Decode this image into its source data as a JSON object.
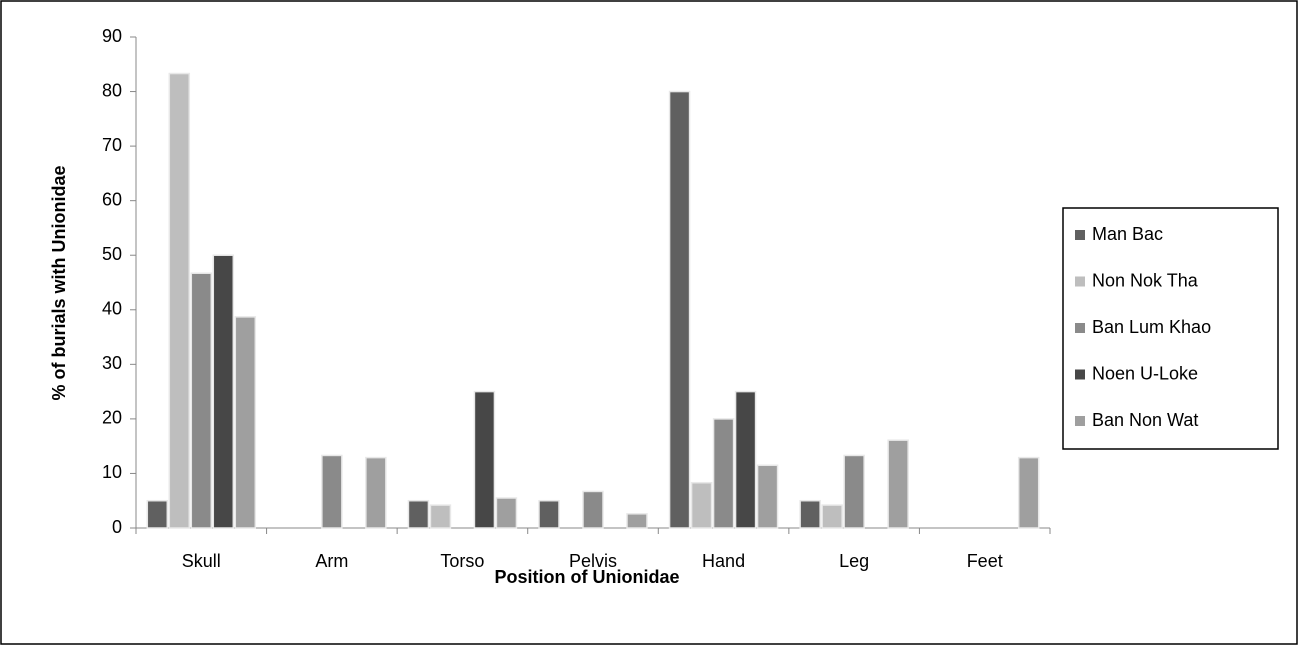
{
  "chart_data": {
    "type": "bar",
    "x_label": "Position of Unionidae",
    "y_label": "% of burials with Unionidae",
    "categories": [
      "Skull",
      "Arm",
      "Torso",
      "Pelvis",
      "Hand",
      "Leg",
      "Feet"
    ],
    "series": [
      {
        "name": "Man Bac",
        "color": "#606060",
        "values": [
          5,
          0,
          5,
          5,
          80,
          5,
          0
        ]
      },
      {
        "name": "Non Nok Tha",
        "color": "#bebebe",
        "values": [
          83.3,
          0,
          4.2,
          0,
          8.3,
          4.2,
          0
        ]
      },
      {
        "name": "Ban Lum Khao",
        "color": "#8a8a8a",
        "values": [
          46.7,
          13.3,
          0,
          6.7,
          20,
          13.3,
          0
        ]
      },
      {
        "name": "Noen U-Loke",
        "color": "#474747",
        "values": [
          50,
          0,
          25,
          0,
          25,
          0,
          0
        ]
      },
      {
        "name": "Ban Non Wat",
        "color": "#9f9f9f",
        "values": [
          38.7,
          12.9,
          5.5,
          2.6,
          11.5,
          16.1,
          12.9
        ]
      }
    ],
    "ylim": [
      0,
      90
    ],
    "yticks": [
      0,
      10,
      20,
      30,
      40,
      50,
      60,
      70,
      80,
      90
    ],
    "grid": false,
    "legend": "right"
  }
}
